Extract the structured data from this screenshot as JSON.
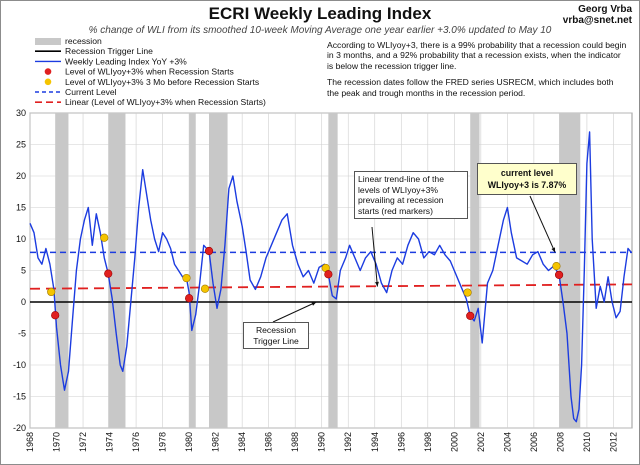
{
  "header": {
    "title": "ECRI Weekly Leading Index",
    "subtitle": "% change of WLI from its smoothed 10-week Moving Average one year earlier +3.0% updated to May 10",
    "author_name": "Georg Vrba",
    "author_email": "vrba@snet.net"
  },
  "note": {
    "p1": "According to WLIyoy+3, there is a 99% probability that a recession could begin in 3 months, and a 92% probability that a recession exists, when the indicator is below the recession trigger line.",
    "p2": "The recession dates follow the FRED series USRECM, which includes both the peak and trough months in the recession period."
  },
  "annotations": {
    "trend": "Linear trend-line of the levels of WLIyoy+3% prevailing at recession starts (red markers)",
    "trigger": "Recession Trigger Line",
    "current_line1": "current level",
    "current_line2": "WLIyoy+3 is 7.87%"
  },
  "colors": {
    "recession": "#c8c8c8",
    "wli": "#1c3ce0",
    "trigger": "#000000",
    "red_marker": "#e02020",
    "yellow_marker": "#f5c400",
    "current": "#1c3ce0",
    "trend": "#e02020"
  },
  "chart_data": {
    "type": "line",
    "title": "ECRI Weekly Leading Index",
    "xlim": [
      1968,
      2013.4
    ],
    "ylim": [
      -20,
      30
    ],
    "x_ticks": [
      1968,
      1970,
      1972,
      1974,
      1976,
      1978,
      1980,
      1982,
      1984,
      1986,
      1988,
      1990,
      1992,
      1994,
      1996,
      1998,
      2000,
      2002,
      2004,
      2006,
      2008,
      2010,
      2012
    ],
    "y_ticks": [
      -20,
      -15,
      -10,
      -5,
      0,
      5,
      10,
      15,
      20,
      25,
      30
    ],
    "grid": true,
    "legend": {
      "placement": "top-left",
      "entries": [
        {
          "label": "recession",
          "kind": "band"
        },
        {
          "label": "Recession Trigger Line",
          "kind": "line-black"
        },
        {
          "label": "Weekly Leading Index YoY +3%",
          "kind": "line-blue"
        },
        {
          "label": "Level of WLIyoy+3% when Recession Starts",
          "kind": "dot-red"
        },
        {
          "label": "Level of WLIyoy+3% 3 Mo before Recession Starts",
          "kind": "dot-yellow"
        },
        {
          "label": "Current Level",
          "kind": "dash-blue"
        },
        {
          "label": "Linear (Level of WLIyoy+3% when Recession Starts)",
          "kind": "dash-red"
        }
      ]
    },
    "recessions": [
      [
        1969.9,
        1970.9
      ],
      [
        1973.9,
        1975.2
      ],
      [
        1980.0,
        1980.5
      ],
      [
        1981.5,
        1982.9
      ],
      [
        1990.5,
        1991.2
      ],
      [
        2001.2,
        2001.9
      ],
      [
        2007.9,
        2009.5
      ]
    ],
    "trigger_level": 0,
    "current_level": 7.87,
    "trend_line": {
      "x": [
        1968,
        2013.4
      ],
      "y": [
        2.1,
        2.8
      ]
    },
    "red_markers": [
      {
        "x": 1969.9,
        "y": -2.1
      },
      {
        "x": 1973.9,
        "y": 4.5
      },
      {
        "x": 1980.0,
        "y": 0.6
      },
      {
        "x": 1981.5,
        "y": 8.1
      },
      {
        "x": 1990.5,
        "y": 4.4
      },
      {
        "x": 2001.2,
        "y": -2.2
      },
      {
        "x": 2007.9,
        "y": 4.3
      }
    ],
    "yellow_markers": [
      {
        "x": 1969.6,
        "y": 1.6
      },
      {
        "x": 1973.6,
        "y": 10.2
      },
      {
        "x": 1979.8,
        "y": 3.8
      },
      {
        "x": 1981.2,
        "y": 2.1
      },
      {
        "x": 1990.3,
        "y": 5.4
      },
      {
        "x": 2001.0,
        "y": 1.5
      },
      {
        "x": 2007.7,
        "y": 5.7
      }
    ],
    "series": [
      {
        "name": "Weekly Leading Index YoY +3%",
        "x": [
          1968.0,
          1968.3,
          1968.6,
          1968.9,
          1969.2,
          1969.5,
          1969.8,
          1970.0,
          1970.3,
          1970.6,
          1970.9,
          1971.2,
          1971.5,
          1971.8,
          1972.1,
          1972.4,
          1972.7,
          1973.0,
          1973.3,
          1973.6,
          1973.9,
          1974.2,
          1974.5,
          1974.8,
          1975.0,
          1975.3,
          1975.6,
          1975.9,
          1976.2,
          1976.5,
          1976.8,
          1977.1,
          1977.4,
          1977.7,
          1978.0,
          1978.3,
          1978.6,
          1978.9,
          1979.2,
          1979.5,
          1979.8,
          1980.0,
          1980.2,
          1980.5,
          1980.8,
          1981.1,
          1981.5,
          1981.8,
          1982.1,
          1982.4,
          1982.7,
          1983.0,
          1983.3,
          1983.6,
          1984.0,
          1984.3,
          1984.6,
          1985.0,
          1985.4,
          1985.8,
          1986.2,
          1986.6,
          1987.0,
          1987.4,
          1987.8,
          1988.2,
          1988.6,
          1989.0,
          1989.4,
          1989.8,
          1990.2,
          1990.5,
          1990.8,
          1991.1,
          1991.4,
          1991.8,
          1992.1,
          1992.5,
          1992.9,
          1993.3,
          1993.7,
          1994.1,
          1994.5,
          1994.9,
          1995.3,
          1995.7,
          1996.1,
          1996.5,
          1996.9,
          1997.3,
          1997.7,
          1998.1,
          1998.5,
          1998.9,
          1999.3,
          1999.7,
          2000.1,
          2000.5,
          2000.9,
          2001.2,
          2001.5,
          2001.8,
          2002.1,
          2002.5,
          2002.9,
          2003.3,
          2003.7,
          2004.0,
          2004.3,
          2004.7,
          2005.1,
          2005.5,
          2005.9,
          2006.3,
          2006.7,
          2007.1,
          2007.5,
          2007.9,
          2008.2,
          2008.5,
          2008.8,
          2009.0,
          2009.2,
          2009.4,
          2009.6,
          2009.8,
          2010.0,
          2010.2,
          2010.4,
          2010.7,
          2011.0,
          2011.3,
          2011.6,
          2011.9,
          2012.2,
          2012.5,
          2012.8,
          2013.1,
          2013.35
        ],
        "y": [
          12.5,
          11.0,
          7.0,
          6.0,
          8.5,
          6.0,
          2.0,
          -4.0,
          -10.0,
          -14.0,
          -11.0,
          -3.0,
          5.0,
          10.0,
          13.0,
          15.0,
          9.0,
          14.0,
          11.0,
          7.0,
          4.5,
          0.5,
          -5.0,
          -10.0,
          -11.0,
          -7.0,
          0.0,
          7.0,
          15.0,
          21.0,
          17.0,
          13.0,
          10.0,
          8.0,
          11.0,
          10.0,
          8.5,
          6.0,
          5.0,
          4.0,
          3.8,
          1.5,
          -4.5,
          -2.0,
          3.0,
          9.0,
          8.1,
          3.0,
          -1.0,
          2.0,
          9.0,
          18.0,
          20.0,
          16.0,
          12.0,
          8.0,
          3.5,
          2.0,
          4.0,
          7.0,
          9.0,
          11.0,
          13.0,
          14.0,
          9.0,
          6.0,
          4.0,
          5.0,
          3.0,
          5.5,
          6.0,
          4.4,
          1.0,
          0.5,
          5.0,
          7.0,
          9.0,
          7.0,
          5.0,
          7.0,
          8.0,
          6.0,
          3.0,
          1.5,
          5.0,
          7.0,
          6.0,
          9.0,
          11.0,
          10.0,
          7.0,
          8.0,
          7.5,
          9.0,
          7.5,
          6.5,
          4.5,
          2.5,
          0.5,
          -2.2,
          -3.0,
          -1.0,
          -6.5,
          3.0,
          5.0,
          9.0,
          13.0,
          15.0,
          11.0,
          7.0,
          6.5,
          6.0,
          7.5,
          8.0,
          6.0,
          5.0,
          5.7,
          4.3,
          0.0,
          -5.0,
          -15.0,
          -18.5,
          -19.0,
          -17.0,
          -10.0,
          5.0,
          22.0,
          27.0,
          10.0,
          -1.0,
          2.5,
          0.0,
          4.0,
          0.0,
          -2.5,
          -1.5,
          4.0,
          8.5,
          7.87
        ]
      }
    ]
  }
}
